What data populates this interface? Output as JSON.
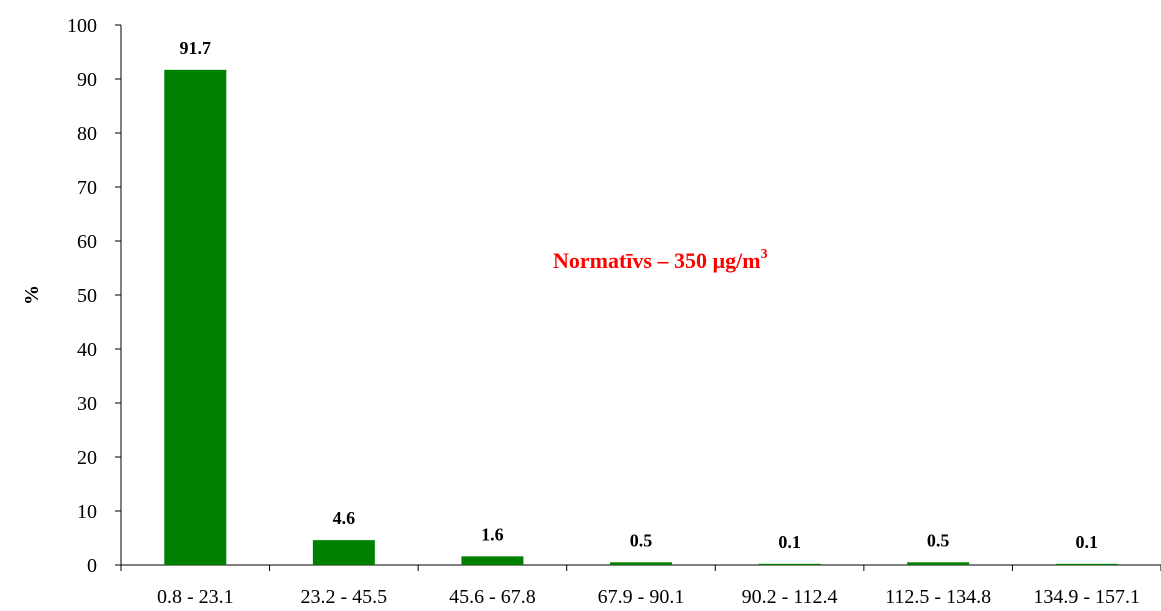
{
  "chart_data": {
    "type": "bar",
    "title": "",
    "xlabel": "",
    "ylabel": "%",
    "ylim": [
      0,
      100
    ],
    "yticks": [
      0,
      10,
      20,
      30,
      40,
      50,
      60,
      70,
      80,
      90,
      100
    ],
    "categories": [
      "0.8 - 23.1",
      "23.2 - 45.5",
      "45.6 - 67.8",
      "67.9 - 90.1",
      "90.2 - 112.4",
      "112.5 - 134.8",
      "134.9 - 157.1"
    ],
    "values": [
      91.7,
      4.6,
      1.6,
      0.5,
      0.1,
      0.5,
      0.1
    ],
    "data_labels": [
      "91.7",
      "4.6",
      "1.6",
      "0.5",
      "0.1",
      "0.5",
      "0.1"
    ],
    "bar_color": "#008000",
    "grid": false,
    "legend": "none",
    "annotation": {
      "text": "Normatīvs – 350 µg/m",
      "superscript": "3",
      "color": "#ff0000"
    }
  }
}
